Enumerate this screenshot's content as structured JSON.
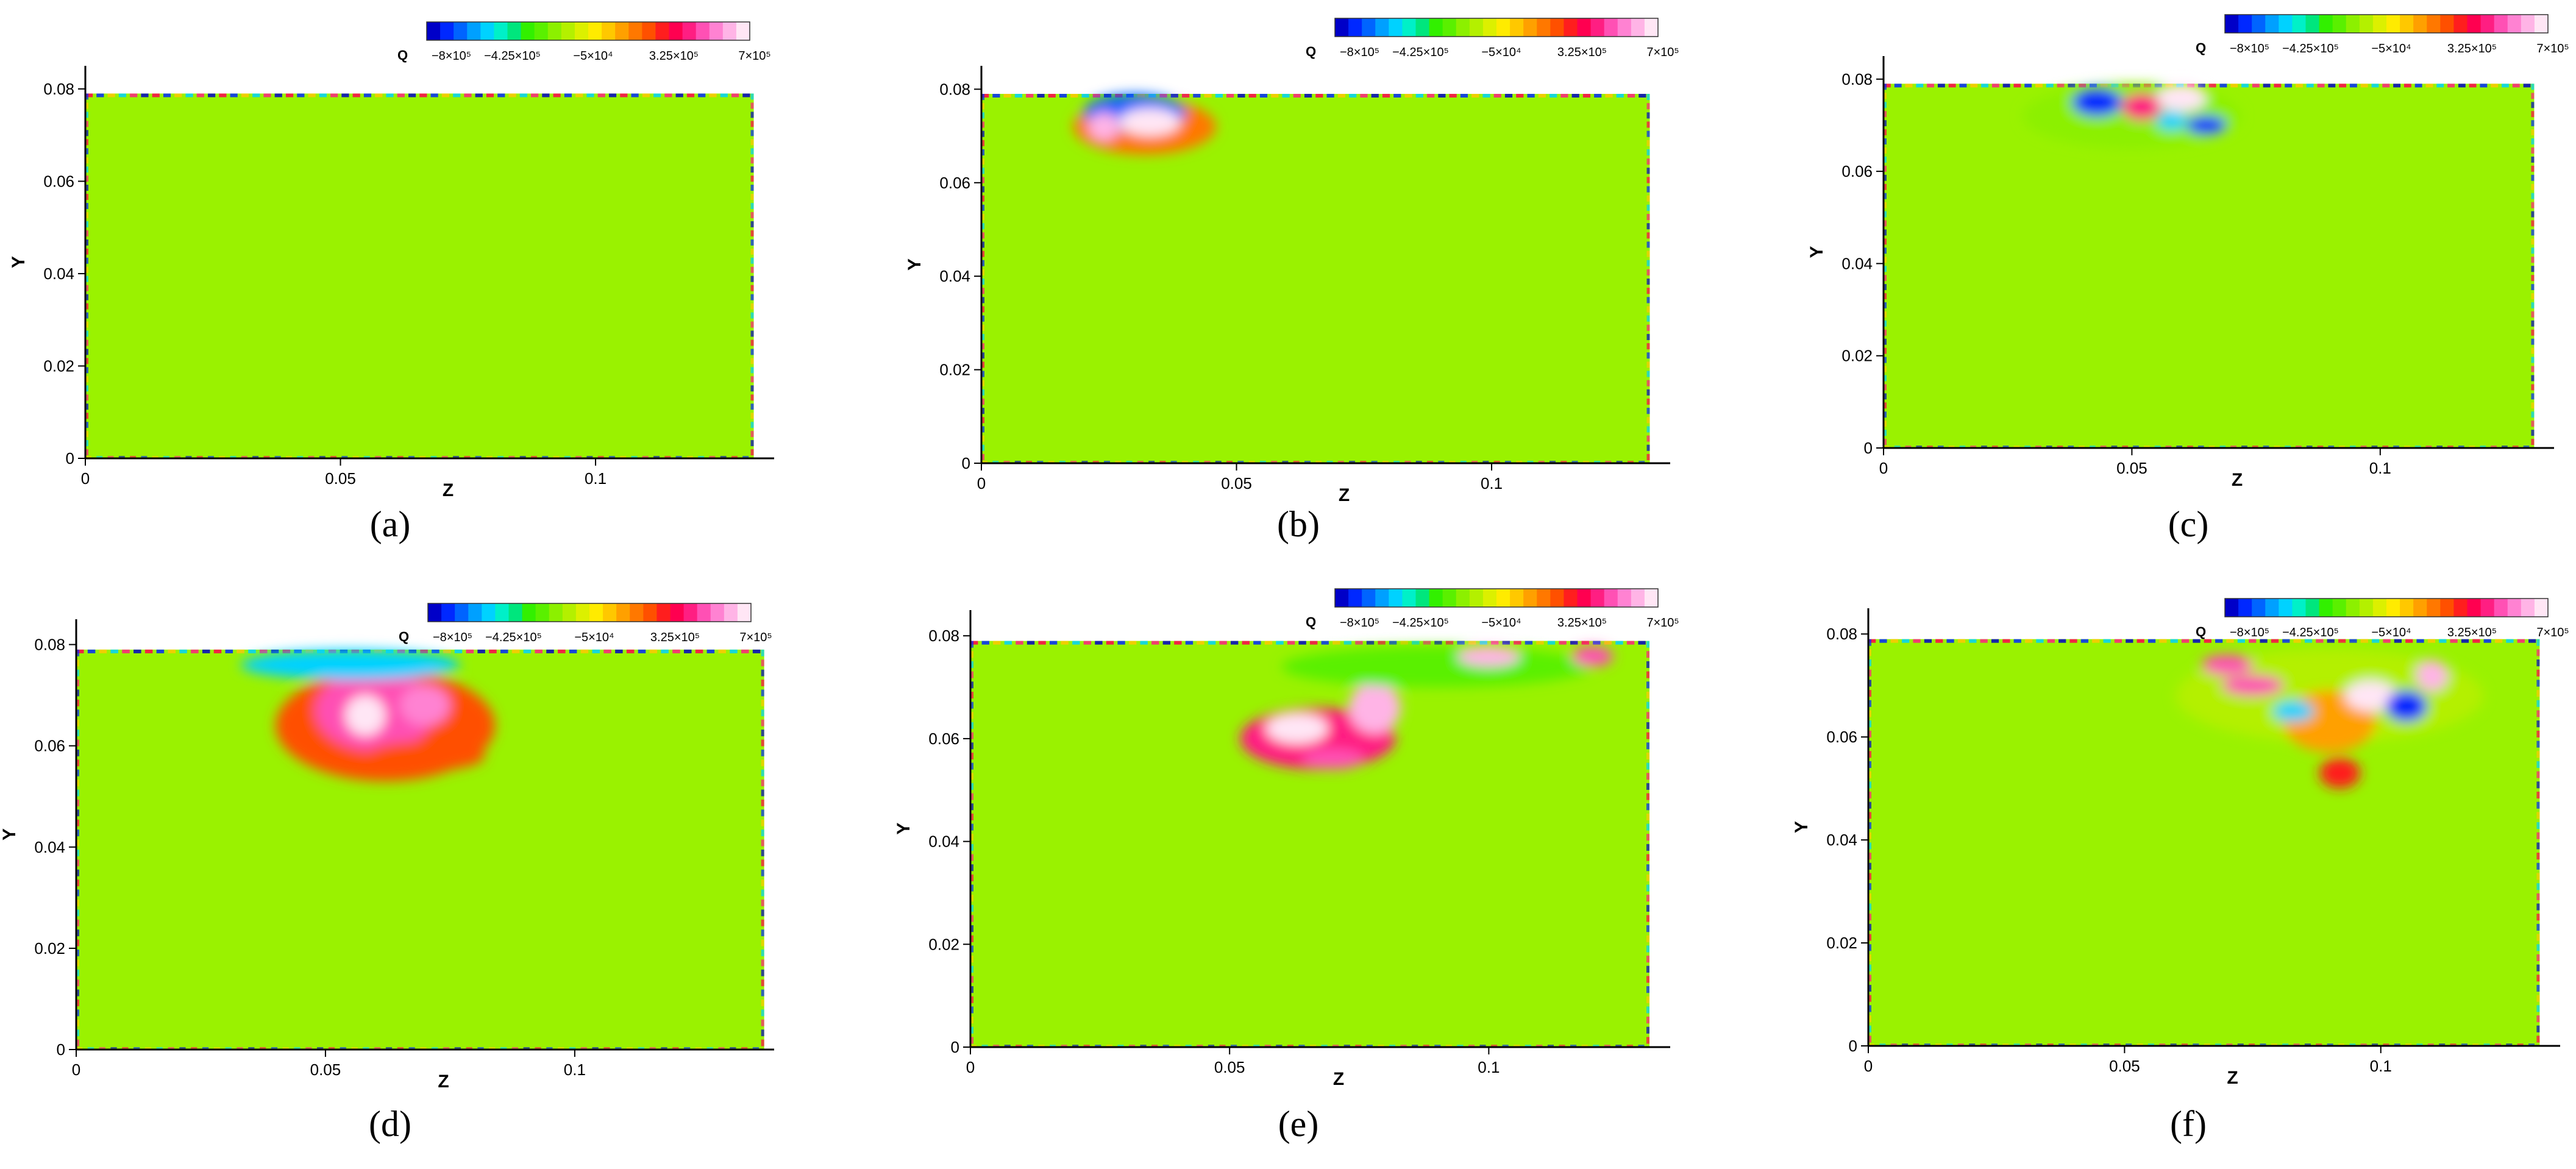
{
  "colors": {
    "background_field": "#9AF200",
    "axis": "#000000",
    "colormap": [
      "#0000C8",
      "#0028FF",
      "#0064FF",
      "#00A0FF",
      "#00D2FF",
      "#00F0C8",
      "#00E67D",
      "#32F000",
      "#5AF000",
      "#8CF000",
      "#B4F000",
      "#DCF000",
      "#FFEB00",
      "#FFC800",
      "#FFA000",
      "#FF7800",
      "#FF5000",
      "#FF1E1E",
      "#FF0050",
      "#FF1E82",
      "#FF50B4",
      "#FF82D2",
      "#FFB4E6",
      "#FFE6F5"
    ]
  },
  "colorbar": {
    "title": "Q",
    "tick_labels": [
      "−8×10⁵",
      "−4.25×10⁵",
      "−5×10⁴",
      "3.25×10⁵",
      "7×10⁵"
    ],
    "tick_values": [
      -800000,
      -425000,
      -50000,
      325000,
      700000
    ],
    "range": [
      -800000,
      700000
    ]
  },
  "chart_data": [
    {
      "type": "heatmap",
      "panel_label": "(a)",
      "xlabel": "Z",
      "ylabel": "Y",
      "xlim": [
        0,
        0.135
      ],
      "ylim": [
        0,
        0.085
      ],
      "xticks": [
        0,
        0.05,
        0.1
      ],
      "xtick_labels": [
        "0",
        "0.05",
        "0.1"
      ],
      "yticks": [
        0,
        0.02,
        0.04,
        0.06,
        0.08
      ],
      "ytick_labels": [
        "0",
        "0.02",
        "0.04",
        "0.06",
        "0.08"
      ],
      "domain": {
        "zmax": 0.131,
        "ymax": 0.079
      },
      "blobs": []
    },
    {
      "type": "heatmap",
      "panel_label": "(b)",
      "xlabel": "Z",
      "ylabel": "Y",
      "xlim": [
        0,
        0.135
      ],
      "ylim": [
        0,
        0.085
      ],
      "xticks": [
        0,
        0.05,
        0.1
      ],
      "xtick_labels": [
        "0",
        "0.05",
        "0.1"
      ],
      "yticks": [
        0,
        0.02,
        0.04,
        0.06,
        0.08
      ],
      "ytick_labels": [
        "0",
        "0.02",
        "0.04",
        "0.06",
        "0.08"
      ],
      "domain": {
        "zmax": 0.131,
        "ymax": 0.079
      },
      "blobs": [
        {
          "z": 0.032,
          "y": 0.072,
          "rz": 0.014,
          "ry": 0.006,
          "q": 150000
        },
        {
          "z": 0.03,
          "y": 0.075,
          "rz": 0.01,
          "ry": 0.004,
          "q": -650000
        },
        {
          "z": 0.033,
          "y": 0.073,
          "rz": 0.006,
          "ry": 0.003,
          "q": 700000
        },
        {
          "z": 0.024,
          "y": 0.072,
          "rz": 0.003,
          "ry": 0.003,
          "q": 600000
        }
      ]
    },
    {
      "type": "heatmap",
      "panel_label": "(c)",
      "xlabel": "Z",
      "ylabel": "Y",
      "xlim": [
        0,
        0.135
      ],
      "ylim": [
        0,
        0.085
      ],
      "xticks": [
        0,
        0.05,
        0.1
      ],
      "xtick_labels": [
        "0",
        "0.05",
        "0.1"
      ],
      "yticks": [
        0,
        0.02,
        0.04,
        0.06,
        0.08
      ],
      "ytick_labels": [
        "0",
        "0.02",
        "0.04",
        "0.06",
        "0.08"
      ],
      "domain": {
        "zmax": 0.131,
        "ymax": 0.079
      },
      "blobs": [
        {
          "z": 0.05,
          "y": 0.072,
          "rz": 0.022,
          "ry": 0.007,
          "q": -200000
        },
        {
          "z": 0.043,
          "y": 0.075,
          "rz": 0.005,
          "ry": 0.003,
          "q": -700000
        },
        {
          "z": 0.052,
          "y": 0.074,
          "rz": 0.004,
          "ry": 0.003,
          "q": 400000
        },
        {
          "z": 0.06,
          "y": 0.076,
          "rz": 0.005,
          "ry": 0.003,
          "q": 700000
        },
        {
          "z": 0.065,
          "y": 0.07,
          "rz": 0.004,
          "ry": 0.002,
          "q": -700000
        },
        {
          "z": 0.058,
          "y": 0.071,
          "rz": 0.003,
          "ry": 0.002,
          "q": -500000
        }
      ]
    },
    {
      "type": "heatmap",
      "panel_label": "(d)",
      "xlabel": "Z",
      "ylabel": "Y",
      "xlim": [
        0,
        0.14
      ],
      "ylim": [
        0,
        0.085
      ],
      "xticks": [
        0,
        0.05,
        0.1
      ],
      "xtick_labels": [
        "0",
        "0.05",
        "0.1"
      ],
      "yticks": [
        0,
        0.02,
        0.04,
        0.06,
        0.08
      ],
      "ytick_labels": [
        "0",
        "0.02",
        "0.04",
        "0.06",
        "0.08"
      ],
      "domain": {
        "zmax": 0.138,
        "ymax": 0.079
      },
      "blobs": [
        {
          "z": 0.062,
          "y": 0.064,
          "rz": 0.022,
          "ry": 0.011,
          "q": 220000
        },
        {
          "z": 0.06,
          "y": 0.067,
          "rz": 0.012,
          "ry": 0.008,
          "q": 500000
        },
        {
          "z": 0.058,
          "y": 0.066,
          "rz": 0.004,
          "ry": 0.004,
          "q": 650000
        },
        {
          "z": 0.07,
          "y": 0.068,
          "rz": 0.005,
          "ry": 0.004,
          "q": 550000
        },
        {
          "z": 0.055,
          "y": 0.076,
          "rz": 0.022,
          "ry": 0.003,
          "q": -500000
        },
        {
          "z": 0.07,
          "y": 0.058,
          "rz": 0.012,
          "ry": 0.003,
          "q": 200000
        }
      ]
    },
    {
      "type": "heatmap",
      "panel_label": "(e)",
      "xlabel": "Z",
      "ylabel": "Y",
      "xlim": [
        0,
        0.135
      ],
      "ylim": [
        0,
        0.085
      ],
      "xticks": [
        0,
        0.05,
        0.1
      ],
      "xtick_labels": [
        "0",
        "0.05",
        "0.1"
      ],
      "yticks": [
        0,
        0.02,
        0.04,
        0.06,
        0.08
      ],
      "ytick_labels": [
        "0",
        "0.02",
        "0.04",
        "0.06",
        "0.08"
      ],
      "domain": {
        "zmax": 0.131,
        "ymax": 0.079
      },
      "blobs": [
        {
          "z": 0.067,
          "y": 0.06,
          "rz": 0.015,
          "ry": 0.006,
          "q": 400000
        },
        {
          "z": 0.063,
          "y": 0.062,
          "rz": 0.006,
          "ry": 0.003,
          "q": 700000
        },
        {
          "z": 0.078,
          "y": 0.066,
          "rz": 0.005,
          "ry": 0.005,
          "q": 600000
        },
        {
          "z": 0.07,
          "y": 0.056,
          "rz": 0.006,
          "ry": 0.002,
          "q": 500000
        },
        {
          "z": 0.09,
          "y": 0.074,
          "rz": 0.03,
          "ry": 0.004,
          "q": -300000
        },
        {
          "z": 0.1,
          "y": 0.076,
          "rz": 0.006,
          "ry": 0.002,
          "q": 600000
        },
        {
          "z": 0.12,
          "y": 0.076,
          "rz": 0.004,
          "ry": 0.002,
          "q": 500000
        }
      ]
    },
    {
      "type": "heatmap",
      "panel_label": "(f)",
      "xlabel": "Z",
      "ylabel": "Y",
      "xlim": [
        0,
        0.135
      ],
      "ylim": [
        0,
        0.085
      ],
      "xticks": [
        0,
        0.05,
        0.1
      ],
      "xtick_labels": [
        "0",
        "0.05",
        "0.1"
      ],
      "yticks": [
        0,
        0.02,
        0.04,
        0.06,
        0.08
      ],
      "ytick_labels": [
        "0",
        "0.02",
        "0.04",
        "0.06",
        "0.08"
      ],
      "domain": {
        "zmax": 0.131,
        "ymax": 0.079
      },
      "blobs": [
        {
          "z": 0.09,
          "y": 0.068,
          "rz": 0.03,
          "ry": 0.009,
          "q": -150000
        },
        {
          "z": 0.09,
          "y": 0.063,
          "rz": 0.009,
          "ry": 0.006,
          "q": 100000
        },
        {
          "z": 0.092,
          "y": 0.053,
          "rz": 0.004,
          "ry": 0.003,
          "q": 300000
        },
        {
          "z": 0.075,
          "y": 0.07,
          "rz": 0.006,
          "ry": 0.002,
          "q": 500000
        },
        {
          "z": 0.098,
          "y": 0.068,
          "rz": 0.005,
          "ry": 0.003,
          "q": 700000
        },
        {
          "z": 0.105,
          "y": 0.066,
          "rz": 0.004,
          "ry": 0.003,
          "q": -700000
        },
        {
          "z": 0.083,
          "y": 0.065,
          "rz": 0.004,
          "ry": 0.002,
          "q": -500000
        },
        {
          "z": 0.11,
          "y": 0.072,
          "rz": 0.003,
          "ry": 0.003,
          "q": 600000
        },
        {
          "z": 0.07,
          "y": 0.074,
          "rz": 0.005,
          "ry": 0.002,
          "q": 500000
        }
      ]
    }
  ]
}
